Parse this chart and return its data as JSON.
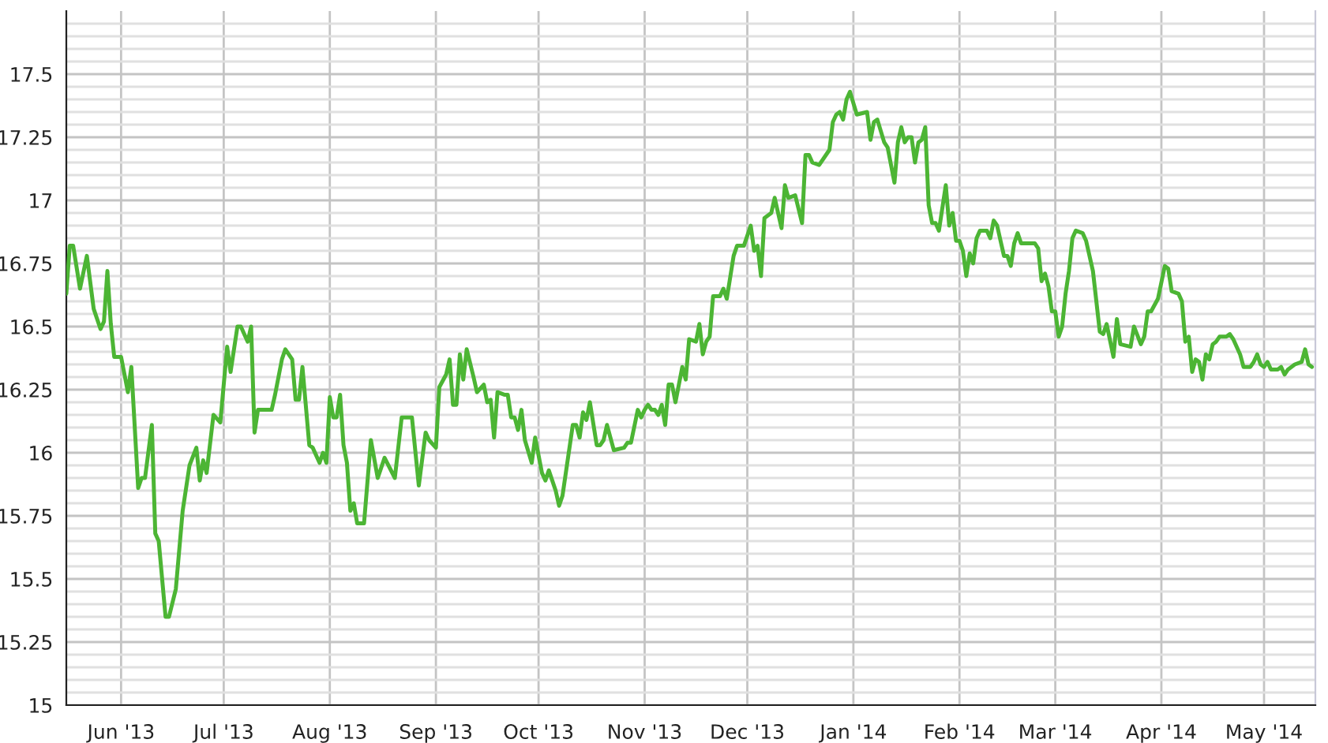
{
  "chart_data": {
    "type": "line",
    "x": [
      "2013-05-16",
      "2013-05-17",
      "2013-05-18",
      "2013-05-20",
      "2013-05-22",
      "2013-05-24",
      "2013-05-26",
      "2013-05-27",
      "2013-05-28",
      "2013-05-29",
      "2013-05-30",
      "2013-06-01",
      "2013-06-03",
      "2013-06-04",
      "2013-06-06",
      "2013-06-07",
      "2013-06-08",
      "2013-06-10",
      "2013-06-11",
      "2013-06-12",
      "2013-06-14",
      "2013-06-15",
      "2013-06-17",
      "2013-06-19",
      "2013-06-21",
      "2013-06-23",
      "2013-06-24",
      "2013-06-25",
      "2013-06-26",
      "2013-06-28",
      "2013-06-30",
      "2013-07-02",
      "2013-07-03",
      "2013-07-05",
      "2013-07-06",
      "2013-07-08",
      "2013-07-09",
      "2013-07-10",
      "2013-07-11",
      "2013-07-13",
      "2013-07-15",
      "2013-07-16",
      "2013-07-18",
      "2013-07-19",
      "2013-07-21",
      "2013-07-22",
      "2013-07-23",
      "2013-07-24",
      "2013-07-26",
      "2013-07-27",
      "2013-07-29",
      "2013-07-30",
      "2013-07-31",
      "2013-08-01",
      "2013-08-02",
      "2013-08-03",
      "2013-08-04",
      "2013-08-05",
      "2013-08-06",
      "2013-08-07",
      "2013-08-08",
      "2013-08-09",
      "2013-08-11",
      "2013-08-13",
      "2013-08-15",
      "2013-08-16",
      "2013-08-17",
      "2013-08-20",
      "2013-08-22",
      "2013-08-25",
      "2013-08-27",
      "2013-08-29",
      "2013-08-30",
      "2013-09-01",
      "2013-09-02",
      "2013-09-04",
      "2013-09-05",
      "2013-09-06",
      "2013-09-07",
      "2013-09-08",
      "2013-09-09",
      "2013-09-10",
      "2013-09-12",
      "2013-09-13",
      "2013-09-15",
      "2013-09-16",
      "2013-09-17",
      "2013-09-18",
      "2013-09-19",
      "2013-09-21",
      "2013-09-22",
      "2013-09-23",
      "2013-09-24",
      "2013-09-25",
      "2013-09-26",
      "2013-09-27",
      "2013-09-29",
      "2013-09-30",
      "2013-10-02",
      "2013-10-03",
      "2013-10-04",
      "2013-10-06",
      "2013-10-07",
      "2013-10-08",
      "2013-10-11",
      "2013-10-12",
      "2013-10-13",
      "2013-10-14",
      "2013-10-15",
      "2013-10-16",
      "2013-10-18",
      "2013-10-19",
      "2013-10-20",
      "2013-10-21",
      "2013-10-23",
      "2013-10-26",
      "2013-10-27",
      "2013-10-28",
      "2013-10-30",
      "2013-10-31",
      "2013-11-01",
      "2013-11-02",
      "2013-11-03",
      "2013-11-04",
      "2013-11-05",
      "2013-11-06",
      "2013-11-07",
      "2013-11-08",
      "2013-11-09",
      "2013-11-10",
      "2013-11-12",
      "2013-11-13",
      "2013-11-14",
      "2013-11-16",
      "2013-11-17",
      "2013-11-18",
      "2013-11-19",
      "2013-11-20",
      "2013-11-21",
      "2013-11-23",
      "2013-11-24",
      "2013-11-25",
      "2013-11-27",
      "2013-11-28",
      "2013-11-30",
      "2013-12-02",
      "2013-12-03",
      "2013-12-04",
      "2013-12-05",
      "2013-12-06",
      "2013-12-08",
      "2013-12-09",
      "2013-12-11",
      "2013-12-12",
      "2013-12-13",
      "2013-12-15",
      "2013-12-17",
      "2013-12-18",
      "2013-12-19",
      "2013-12-20",
      "2013-12-22",
      "2013-12-25",
      "2013-12-26",
      "2013-12-27",
      "2013-12-28",
      "2013-12-29",
      "2013-12-30",
      "2013-12-31",
      "2014-01-02",
      "2014-01-05",
      "2014-01-06",
      "2014-01-07",
      "2014-01-08",
      "2014-01-10",
      "2014-01-11",
      "2014-01-13",
      "2014-01-14",
      "2014-01-15",
      "2014-01-16",
      "2014-01-17",
      "2014-01-18",
      "2014-01-19",
      "2014-01-20",
      "2014-01-21",
      "2014-01-22",
      "2014-01-23",
      "2014-01-24",
      "2014-01-25",
      "2014-01-26",
      "2014-01-28",
      "2014-01-29",
      "2014-01-30",
      "2014-01-31",
      "2014-02-01",
      "2014-02-02",
      "2014-02-03",
      "2014-02-04",
      "2014-02-05",
      "2014-02-06",
      "2014-02-07",
      "2014-02-09",
      "2014-02-10",
      "2014-02-11",
      "2014-02-12",
      "2014-02-14",
      "2014-02-15",
      "2014-02-16",
      "2014-02-17",
      "2014-02-18",
      "2014-02-19",
      "2014-02-21",
      "2014-02-23",
      "2014-02-24",
      "2014-02-25",
      "2014-02-26",
      "2014-02-27",
      "2014-02-28",
      "2014-03-01",
      "2014-03-02",
      "2014-03-03",
      "2014-03-04",
      "2014-03-05",
      "2014-03-06",
      "2014-03-07",
      "2014-03-09",
      "2014-03-10",
      "2014-03-12",
      "2014-03-14",
      "2014-03-15",
      "2014-03-16",
      "2014-03-18",
      "2014-03-19",
      "2014-03-20",
      "2014-03-23",
      "2014-03-24",
      "2014-03-26",
      "2014-03-27",
      "2014-03-28",
      "2014-03-29",
      "2014-03-31",
      "2014-04-02",
      "2014-04-03",
      "2014-04-04",
      "2014-04-06",
      "2014-04-07",
      "2014-04-08",
      "2014-04-09",
      "2014-04-10",
      "2014-04-11",
      "2014-04-12",
      "2014-04-13",
      "2014-04-14",
      "2014-04-15",
      "2014-04-16",
      "2014-04-17",
      "2014-04-18",
      "2014-04-20",
      "2014-04-21",
      "2014-04-22",
      "2014-04-24",
      "2014-04-25",
      "2014-04-27",
      "2014-04-28",
      "2014-04-29",
      "2014-04-30",
      "2014-05-01",
      "2014-05-02",
      "2014-05-03",
      "2014-05-05",
      "2014-05-06",
      "2014-05-07",
      "2014-05-08",
      "2014-05-10",
      "2014-05-12",
      "2014-05-13",
      "2014-05-14",
      "2014-05-15"
    ],
    "values": [
      16.63,
      16.82,
      16.82,
      16.65,
      16.78,
      16.57,
      16.49,
      16.52,
      16.72,
      16.51,
      16.38,
      16.38,
      16.24,
      16.34,
      15.86,
      15.9,
      15.9,
      16.11,
      15.68,
      15.65,
      15.35,
      15.35,
      15.46,
      15.77,
      15.95,
      16.02,
      15.89,
      15.97,
      15.92,
      16.15,
      16.12,
      16.42,
      16.32,
      16.5,
      16.5,
      16.44,
      16.5,
      16.08,
      16.17,
      16.17,
      16.17,
      16.23,
      16.37,
      16.41,
      16.37,
      16.21,
      16.21,
      16.34,
      16.03,
      16.02,
      15.96,
      16.0,
      15.96,
      16.22,
      16.14,
      16.14,
      16.23,
      16.03,
      15.96,
      15.77,
      15.8,
      15.72,
      15.72,
      16.05,
      15.9,
      15.94,
      15.98,
      15.9,
      16.14,
      16.14,
      15.87,
      16.08,
      16.05,
      16.02,
      16.26,
      16.31,
      16.37,
      16.19,
      16.19,
      16.39,
      16.29,
      16.41,
      16.3,
      16.24,
      16.27,
      16.2,
      16.21,
      16.06,
      16.24,
      16.23,
      16.23,
      16.14,
      16.14,
      16.09,
      16.17,
      16.05,
      15.96,
      16.06,
      15.92,
      15.89,
      15.93,
      15.85,
      15.79,
      15.83,
      16.11,
      16.11,
      16.06,
      16.16,
      16.13,
      16.2,
      16.03,
      16.03,
      16.05,
      16.11,
      16.01,
      16.02,
      16.04,
      16.04,
      16.17,
      16.14,
      16.17,
      16.19,
      16.17,
      16.17,
      16.15,
      16.19,
      16.11,
      16.27,
      16.27,
      16.2,
      16.34,
      16.29,
      16.45,
      16.44,
      16.51,
      16.39,
      16.44,
      16.46,
      16.62,
      16.62,
      16.65,
      16.61,
      16.78,
      16.82,
      16.82,
      16.9,
      16.8,
      16.82,
      16.7,
      16.93,
      16.95,
      17.01,
      16.89,
      17.06,
      17.01,
      17.02,
      16.91,
      17.18,
      17.18,
      17.15,
      17.14,
      17.2,
      17.31,
      17.34,
      17.35,
      17.32,
      17.4,
      17.43,
      17.34,
      17.35,
      17.24,
      17.31,
      17.32,
      17.23,
      17.21,
      17.07,
      17.23,
      17.29,
      17.23,
      17.25,
      17.25,
      17.15,
      17.23,
      17.24,
      17.29,
      16.98,
      16.91,
      16.91,
      16.88,
      17.06,
      16.9,
      16.95,
      16.84,
      16.84,
      16.8,
      16.7,
      16.79,
      16.75,
      16.85,
      16.88,
      16.88,
      16.85,
      16.92,
      16.9,
      16.78,
      16.78,
      16.74,
      16.83,
      16.87,
      16.83,
      16.83,
      16.83,
      16.81,
      16.68,
      16.71,
      16.66,
      16.56,
      16.56,
      16.46,
      16.5,
      16.63,
      16.72,
      16.85,
      16.88,
      16.87,
      16.84,
      16.72,
      16.48,
      16.47,
      16.51,
      16.38,
      16.53,
      16.43,
      16.42,
      16.5,
      16.43,
      16.46,
      16.56,
      16.56,
      16.61,
      16.74,
      16.73,
      16.64,
      16.63,
      16.6,
      16.44,
      16.46,
      16.32,
      16.37,
      16.36,
      16.29,
      16.39,
      16.37,
      16.43,
      16.44,
      16.46,
      16.46,
      16.47,
      16.45,
      16.39,
      16.34,
      16.34,
      16.36,
      16.39,
      16.35,
      16.34,
      16.36,
      16.33,
      16.33,
      16.34,
      16.31,
      16.33,
      16.35,
      16.36,
      16.41,
      16.35,
      16.34
    ],
    "color": "#4cb534",
    "line_style": "solid",
    "marker": "none",
    "grid": true,
    "xlim": [
      "2013-05-16",
      "2014-05-16"
    ],
    "xticks": [
      {
        "value": "2013-06-01",
        "label": "Jun '13"
      },
      {
        "value": "2013-07-01",
        "label": "Jul '13"
      },
      {
        "value": "2013-08-01",
        "label": "Aug '13"
      },
      {
        "value": "2013-09-01",
        "label": "Sep '13"
      },
      {
        "value": "2013-10-01",
        "label": "Oct '13"
      },
      {
        "value": "2013-11-01",
        "label": "Nov '13"
      },
      {
        "value": "2013-12-01",
        "label": "Dec '13"
      },
      {
        "value": "2014-01-01",
        "label": "Jan '14"
      },
      {
        "value": "2014-02-01",
        "label": "Feb '14"
      },
      {
        "value": "2014-03-01",
        "label": "Mar '14"
      },
      {
        "value": "2014-04-01",
        "label": "Apr '14"
      },
      {
        "value": "2014-05-01",
        "label": "May '14"
      }
    ],
    "ylim": [
      15,
      17.75
    ],
    "yticks": [
      15,
      {
        "value": 15.05,
        "label": null
      },
      {
        "value": 15.1,
        "label": null
      },
      {
        "value": 15.15,
        "label": null
      },
      {
        "value": 15.2,
        "label": null
      },
      15.25,
      {
        "value": 15.3,
        "label": null
      },
      {
        "value": 15.35,
        "label": null
      },
      {
        "value": 15.4,
        "label": null
      },
      {
        "value": 15.45,
        "label": null
      },
      15.5,
      {
        "value": 15.55,
        "label": null
      },
      {
        "value": 15.6,
        "label": null
      },
      {
        "value": 15.65,
        "label": null
      },
      {
        "value": 15.7,
        "label": null
      },
      15.75,
      {
        "value": 15.8,
        "label": null
      },
      {
        "value": 15.85,
        "label": null
      },
      {
        "value": 15.9,
        "label": null
      },
      {
        "value": 15.95,
        "label": null
      },
      16,
      {
        "value": 16.05,
        "label": null
      },
      {
        "value": 16.1,
        "label": null
      },
      {
        "value": 16.15,
        "label": null
      },
      {
        "value": 16.2,
        "label": null
      },
      16.25,
      {
        "value": 16.3,
        "label": null
      },
      {
        "value": 16.35,
        "label": null
      },
      {
        "value": 16.4,
        "label": null
      },
      {
        "value": 16.45,
        "label": null
      },
      16.5,
      {
        "value": 16.55,
        "label": null
      },
      {
        "value": 16.6,
        "label": null
      },
      {
        "value": 16.65,
        "label": null
      },
      {
        "value": 16.7,
        "label": null
      },
      16.75,
      {
        "value": 16.8,
        "label": null
      },
      {
        "value": 16.85,
        "label": null
      },
      {
        "value": 16.9,
        "label": null
      },
      {
        "value": 16.95,
        "label": null
      },
      17,
      {
        "value": 17.05,
        "label": null
      },
      {
        "value": 17.1,
        "label": null
      },
      {
        "value": 17.15,
        "label": null
      },
      {
        "value": 17.2,
        "label": null
      },
      17.25,
      {
        "value": 17.3,
        "label": null
      },
      {
        "value": 17.35,
        "label": null
      },
      {
        "value": 17.4,
        "label": null
      },
      {
        "value": 17.45,
        "label": null
      },
      17.5,
      {
        "value": 17.55,
        "label": null
      },
      {
        "value": 17.6,
        "label": null
      },
      {
        "value": 17.65,
        "label": null
      },
      {
        "value": 17.7,
        "label": null
      }
    ]
  }
}
